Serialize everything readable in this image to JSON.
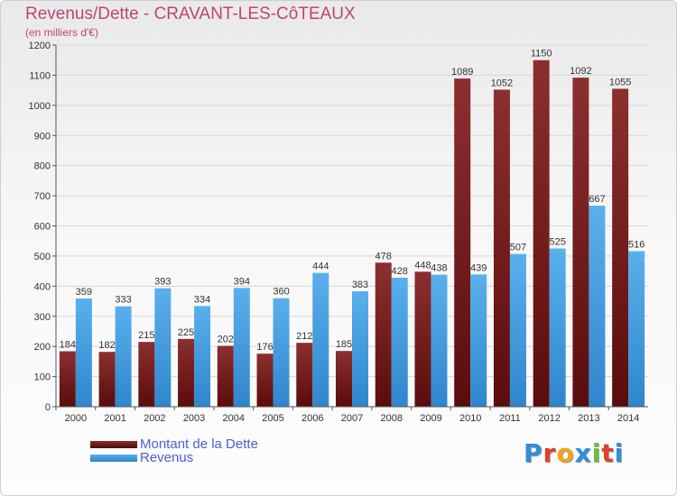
{
  "title": "Revenus/Dette - CRAVANT-LES-CôTEAUX",
  "subtitle": "(en milliers d'€)",
  "brand": {
    "letters": [
      "P",
      "r",
      "o",
      "x",
      "i",
      "t",
      "i"
    ],
    "colors": [
      "#2f8fd8",
      "#e0402e",
      "#f3a31c",
      "#2f8fd8",
      "#6cbf3b",
      "#e0402e",
      "#2f8fd8"
    ]
  },
  "legend": [
    {
      "label": "Montant de la Dette",
      "color": "#7a1a1a"
    },
    {
      "label": "Revenus",
      "color": "#3d9be0"
    }
  ],
  "chart_data": {
    "type": "bar",
    "title": "Revenus/Dette - CRAVANT-LES-CôTEAUX",
    "subtitle": "(en milliers d'€)",
    "categories": [
      "2000",
      "2001",
      "2002",
      "2003",
      "2004",
      "2005",
      "2006",
      "2007",
      "2008",
      "2009",
      "2010",
      "2011",
      "2012",
      "2013",
      "2014"
    ],
    "series": [
      {
        "name": "Montant de la Dette",
        "color": "#7a1a1a",
        "values": [
          184,
          182,
          215,
          225,
          202,
          176,
          212,
          185,
          478,
          448,
          1089,
          1052,
          1150,
          1092,
          1055
        ]
      },
      {
        "name": "Revenus",
        "color": "#3d9be0",
        "values": [
          359,
          333,
          393,
          334,
          394,
          360,
          444,
          383,
          428,
          438,
          439,
          507,
          525,
          667,
          516
        ]
      }
    ],
    "ylim": [
      0,
      1200
    ],
    "yticks": [
      0,
      100,
      200,
      300,
      400,
      500,
      600,
      700,
      800,
      900,
      1000,
      1100,
      1200
    ],
    "grid": true,
    "legend_position": "bottom-left"
  }
}
